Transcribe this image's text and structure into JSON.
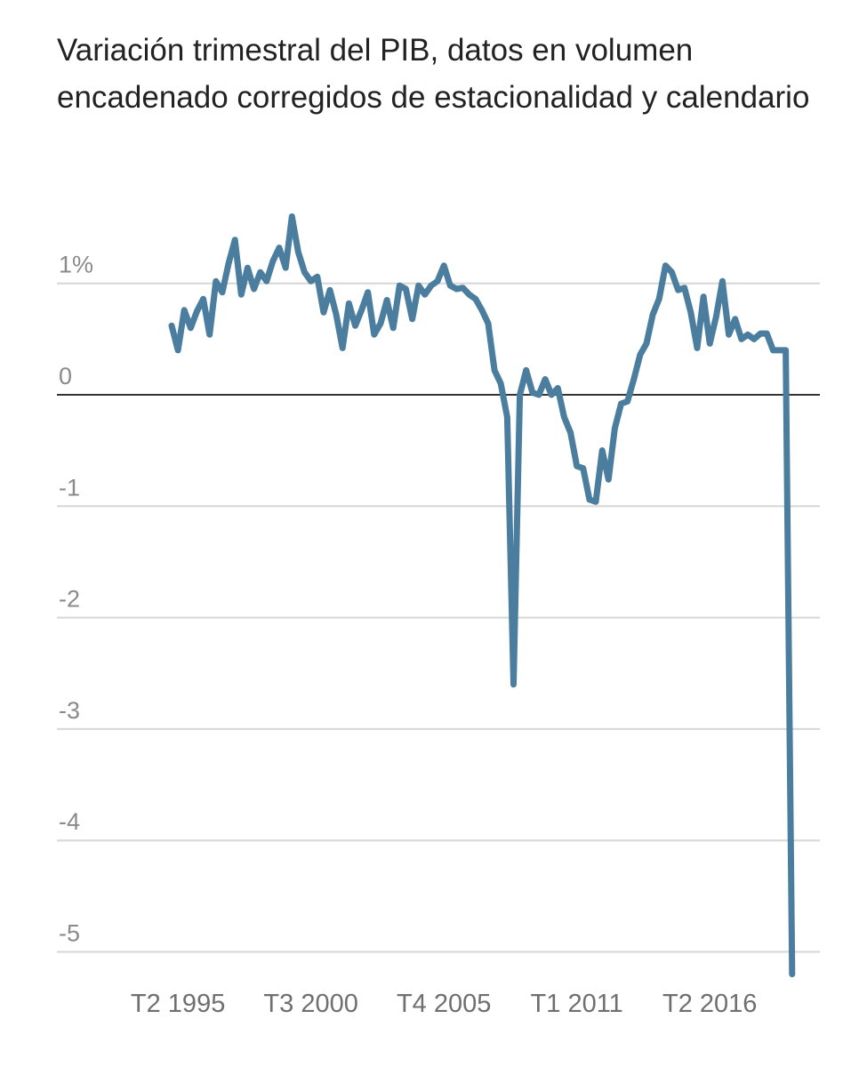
{
  "chart_data": {
    "type": "line",
    "title": "Variación trimestral del PIB, datos en volumen encadenado corregidos de estacionalidad y calendario",
    "y_ticks": [
      {
        "value": 1,
        "label": "1%"
      },
      {
        "value": 0,
        "label": "0"
      },
      {
        "value": -1,
        "label": "-1"
      },
      {
        "value": -2,
        "label": "-2"
      },
      {
        "value": -3,
        "label": "-3"
      },
      {
        "value": -4,
        "label": "-4"
      },
      {
        "value": -5,
        "label": "-5"
      }
    ],
    "x_ticks": [
      {
        "index": 1,
        "label": "T2 1995"
      },
      {
        "index": 22,
        "label": "T3 2000"
      },
      {
        "index": 43,
        "label": "T4 2005"
      },
      {
        "index": 64,
        "label": "T1 2011"
      },
      {
        "index": 85,
        "label": "T2 2016"
      }
    ],
    "ylim": [
      -5.2,
      1.6
    ],
    "xlim": [
      -8,
      101
    ],
    "grid": true,
    "zero_line": true,
    "series_color": "#4a7d9e",
    "series": [
      {
        "values": [
          0.62,
          0.4,
          0.76,
          0.6,
          0.75,
          0.86,
          0.54,
          1.02,
          0.92,
          1.18,
          1.39,
          0.9,
          1.14,
          0.95,
          1.1,
          1.02,
          1.2,
          1.32,
          1.14,
          1.6,
          1.28,
          1.1,
          1.02,
          1.06,
          0.74,
          0.94,
          0.72,
          0.42,
          0.82,
          0.62,
          0.76,
          0.92,
          0.54,
          0.64,
          0.85,
          0.6,
          0.98,
          0.95,
          0.68,
          0.98,
          0.9,
          0.98,
          1.02,
          1.16,
          0.98,
          0.95,
          0.96,
          0.9,
          0.86,
          0.76,
          0.64,
          0.22,
          0.1,
          -0.2,
          -2.6,
          0.0,
          0.22,
          0.02,
          0.0,
          0.14,
          0.0,
          0.06,
          -0.2,
          -0.34,
          -0.64,
          -0.66,
          -0.94,
          -0.96,
          -0.5,
          -0.76,
          -0.3,
          -0.08,
          -0.06,
          0.14,
          0.36,
          0.46,
          0.72,
          0.86,
          1.16,
          1.1,
          0.94,
          0.96,
          0.74,
          0.42,
          0.88,
          0.46,
          0.7,
          1.02,
          0.54,
          0.68,
          0.5,
          0.54,
          0.5,
          0.55,
          0.55,
          0.4,
          0.4,
          0.4,
          -5.2
        ]
      }
    ]
  }
}
